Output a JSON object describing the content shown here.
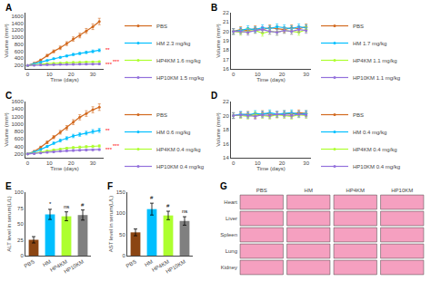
{
  "chart_data": [
    {
      "type": "line",
      "title": "A",
      "xlabel": "Time (days)",
      "ylabel": "Volume (mm³)",
      "x": [
        0,
        3,
        6,
        9,
        12,
        15,
        18,
        21,
        24,
        27,
        30,
        33
      ],
      "series": [
        {
          "name": "PBS",
          "color": "#D2691E",
          "values": [
            200,
            260,
            350,
            480,
            600,
            700,
            820,
            950,
            1050,
            1180,
            1300,
            1450
          ],
          "errors": [
            15,
            20,
            25,
            35,
            40,
            50,
            55,
            60,
            65,
            70,
            80,
            90
          ]
        },
        {
          "name": "HM 2.3 mg/kg",
          "color": "#00BFFF",
          "values": [
            200,
            240,
            290,
            340,
            390,
            430,
            470,
            510,
            540,
            570,
            600,
            630
          ],
          "errors": [
            12,
            15,
            18,
            20,
            22,
            25,
            28,
            30,
            32,
            35,
            38,
            40
          ]
        },
        {
          "name": "HP4KM 1.6 mg/kg",
          "color": "#ADFF2F",
          "values": [
            200,
            210,
            230,
            250,
            260,
            270,
            280,
            285,
            290,
            295,
            300,
            305
          ],
          "errors": [
            10,
            12,
            14,
            15,
            16,
            17,
            18,
            18,
            19,
            20,
            20,
            21
          ]
        },
        {
          "name": "HP10KM 1.5 mg/kg",
          "color": "#9370DB",
          "values": [
            200,
            205,
            215,
            220,
            225,
            228,
            230,
            232,
            234,
            236,
            238,
            240
          ],
          "errors": [
            10,
            11,
            12,
            13,
            13,
            14,
            14,
            14,
            15,
            15,
            15,
            16
          ]
        }
      ],
      "xlim": [
        -1,
        35
      ],
      "xticks": [
        0,
        10,
        20,
        30
      ],
      "ylim": [
        100,
        1700
      ],
      "yticks": [
        200,
        400,
        600,
        800,
        1000,
        1200,
        1400,
        1600
      ],
      "grid": false,
      "legend": "right",
      "marker": "circle",
      "annotations": [
        {
          "text": "**",
          "x": 33,
          "y": 630,
          "color": "red"
        },
        {
          "text": "***",
          "x": 33,
          "y": 305,
          "color": "red"
        },
        {
          "text": "***",
          "x": 33,
          "y": 240,
          "color": "red"
        }
      ]
    },
    {
      "type": "line",
      "title": "B",
      "xlabel": "Time (days)",
      "ylabel": "Volume (mm³)",
      "x": [
        0,
        3,
        6,
        9,
        12,
        15,
        18,
        21,
        24,
        27,
        30
      ],
      "series": [
        {
          "name": "PBS",
          "color": "#D2691E",
          "values": [
            20,
            20.2,
            20.1,
            20.3,
            20.2,
            20.4,
            20.3,
            20.2,
            20.4,
            20.3,
            20.5
          ],
          "errors": [
            0.3,
            0.3,
            0.3,
            0.3,
            0.3,
            0.3,
            0.3,
            0.3,
            0.3,
            0.3,
            0.3
          ]
        },
        {
          "name": "HM 1.7 mg/kg",
          "color": "#00BFFF",
          "values": [
            20,
            20.1,
            20.3,
            20.2,
            20.4,
            20.3,
            20.5,
            20.4,
            20.3,
            20.5,
            20.4
          ],
          "errors": [
            0.3,
            0.3,
            0.3,
            0.3,
            0.3,
            0.3,
            0.3,
            0.3,
            0.3,
            0.3,
            0.3
          ]
        },
        {
          "name": "HP4KM 1.1 mg/kg",
          "color": "#ADFF2F",
          "values": [
            20,
            19.9,
            20.0,
            20.1,
            19.8,
            20.0,
            19.9,
            20.1,
            20.0,
            19.9,
            20.2
          ],
          "errors": [
            0.3,
            0.3,
            0.3,
            0.3,
            0.3,
            0.3,
            0.3,
            0.3,
            0.3,
            0.3,
            0.3
          ]
        },
        {
          "name": "HP10KM 1.1 mg/kg",
          "color": "#9370DB",
          "values": [
            20,
            20.0,
            19.9,
            20.1,
            20.2,
            20.0,
            19.9,
            20.1,
            20.0,
            20.2,
            20.1
          ],
          "errors": [
            0.3,
            0.3,
            0.3,
            0.3,
            0.3,
            0.3,
            0.3,
            0.3,
            0.3,
            0.3,
            0.3
          ]
        }
      ],
      "xlim": [
        -1,
        32
      ],
      "xticks": [
        0,
        10,
        20,
        30
      ],
      "ylim": [
        16,
        22
      ],
      "yticks": [
        16,
        17,
        18,
        19,
        20,
        21,
        22
      ],
      "grid": false,
      "legend": "right",
      "marker": "circle"
    },
    {
      "type": "line",
      "title": "C",
      "xlabel": "Time (days)",
      "ylabel": "Volume (mm³)",
      "x": [
        0,
        3,
        6,
        9,
        12,
        15,
        18,
        21,
        24,
        27,
        30,
        33
      ],
      "series": [
        {
          "name": "PBS",
          "color": "#D2691E",
          "values": [
            200,
            270,
            380,
            510,
            650,
            780,
            900,
            1050,
            1180,
            1280,
            1380,
            1450
          ],
          "errors": [
            15,
            20,
            28,
            35,
            42,
            50,
            58,
            65,
            70,
            75,
            80,
            88
          ]
        },
        {
          "name": "HM 0.6 mg/kg",
          "color": "#00BFFF",
          "values": [
            200,
            250,
            320,
            400,
            490,
            560,
            620,
            680,
            720,
            760,
            800,
            830
          ],
          "errors": [
            12,
            18,
            22,
            28,
            32,
            38,
            42,
            45,
            48,
            50,
            52,
            55
          ]
        },
        {
          "name": "HP4KM 0.4 mg/kg",
          "color": "#ADFF2F",
          "values": [
            200,
            220,
            250,
            280,
            310,
            330,
            355,
            370,
            385,
            395,
            405,
            415
          ],
          "errors": [
            10,
            12,
            15,
            18,
            20,
            22,
            24,
            25,
            26,
            27,
            28,
            29
          ]
        },
        {
          "name": "HP10KM 0.4 mg/kg",
          "color": "#9370DB",
          "values": [
            200,
            210,
            225,
            245,
            260,
            275,
            285,
            295,
            302,
            308,
            314,
            320
          ],
          "errors": [
            10,
            11,
            13,
            15,
            16,
            17,
            18,
            19,
            20,
            20,
            21,
            21
          ]
        }
      ],
      "xlim": [
        -1,
        35
      ],
      "xticks": [
        0,
        10,
        20,
        30
      ],
      "ylim": [
        100,
        1600
      ],
      "yticks": [
        200,
        400,
        600,
        800,
        1000,
        1200,
        1400,
        1600
      ],
      "grid": false,
      "legend": "right",
      "marker": "circle",
      "annotations": [
        {
          "text": "**",
          "x": 33,
          "y": 830,
          "color": "red"
        },
        {
          "text": "***",
          "x": 33,
          "y": 415,
          "color": "red"
        },
        {
          "text": "***",
          "x": 33,
          "y": 320,
          "color": "red"
        }
      ]
    },
    {
      "type": "line",
      "title": "D",
      "xlabel": "Time (days)",
      "ylabel": "Volume (mm³)",
      "x": [
        0,
        3,
        6,
        9,
        12,
        15,
        18,
        21,
        24,
        27,
        30
      ],
      "series": [
        {
          "name": "PBS",
          "color": "#D2691E",
          "values": [
            20,
            20.1,
            20.2,
            20.0,
            20.3,
            20.2,
            20.1,
            20.3,
            20.2,
            20.4,
            20.3
          ],
          "errors": [
            0.4,
            0.4,
            0.4,
            0.4,
            0.4,
            0.4,
            0.4,
            0.4,
            0.4,
            0.4,
            0.4
          ]
        },
        {
          "name": "HM 0.4 mg/kg",
          "color": "#00BFFF",
          "values": [
            20,
            20.2,
            20.1,
            20.3,
            20.2,
            20.4,
            20.2,
            20.3,
            20.4,
            20.2,
            20.3
          ],
          "errors": [
            0.4,
            0.4,
            0.4,
            0.4,
            0.4,
            0.4,
            0.4,
            0.4,
            0.4,
            0.4,
            0.4
          ]
        },
        {
          "name": "HP4KM 0.4 mg/kg",
          "color": "#ADFF2F",
          "values": [
            20,
            20.0,
            19.9,
            20.1,
            20.0,
            19.9,
            20.1,
            20.0,
            19.9,
            20.1,
            20.0
          ],
          "errors": [
            0.4,
            0.4,
            0.4,
            0.4,
            0.4,
            0.4,
            0.4,
            0.4,
            0.4,
            0.4,
            0.4
          ]
        },
        {
          "name": "HP10KM 0.4 mg/kg",
          "color": "#9370DB",
          "values": [
            20,
            20.1,
            20.0,
            19.9,
            20.1,
            20.0,
            20.2,
            20.1,
            20.0,
            20.2,
            20.1
          ],
          "errors": [
            0.4,
            0.4,
            0.4,
            0.4,
            0.4,
            0.4,
            0.4,
            0.4,
            0.4,
            0.4,
            0.4
          ]
        }
      ],
      "xlim": [
        -1,
        32
      ],
      "xticks": [
        0,
        10,
        20,
        30
      ],
      "ylim": [
        14,
        22
      ],
      "yticks": [
        14,
        16,
        18,
        20,
        22
      ],
      "grid": false,
      "legend": "right",
      "marker": "circle"
    },
    {
      "type": "bar",
      "title": "E",
      "ylabel": "ALT level in serum(L/L)",
      "categories": [
        "PBS",
        "HM",
        "HP4KM",
        "HP10KM"
      ],
      "values": [
        25,
        65,
        62,
        64
      ],
      "errors": [
        5,
        8,
        7,
        8
      ],
      "colors": [
        "#8B4513",
        "#00BFFF",
        "#ADFF2F",
        "#808080"
      ],
      "ylim": [
        0,
        100
      ],
      "yticks": [
        0,
        25,
        50,
        75,
        100
      ],
      "grid": false,
      "annotations": [
        {
          "text": "*",
          "x": "HM",
          "y": 73
        },
        {
          "text": "ns",
          "x": "HP4KM",
          "y": 69
        },
        {
          "text": "#",
          "x": "HP10KM",
          "y": 72
        }
      ]
    },
    {
      "type": "bar",
      "title": "F",
      "ylabel": "AST level in serum(L/L)",
      "categories": [
        "PBS",
        "HM",
        "HP4KM",
        "HP10KM"
      ],
      "values": [
        55,
        110,
        95,
        82
      ],
      "errors": [
        8,
        14,
        10,
        10
      ],
      "colors": [
        "#8B4513",
        "#00BFFF",
        "#ADFF2F",
        "#808080"
      ],
      "ylim": [
        0,
        150
      ],
      "yticks": [
        0,
        50,
        100,
        150
      ],
      "grid": false,
      "annotations": [
        {
          "text": "#",
          "x": "HM",
          "y": 124
        },
        {
          "text": "#",
          "x": "HP4KM",
          "y": 105
        },
        {
          "text": "ns",
          "x": "HP10KM",
          "y": 92
        }
      ]
    },
    {
      "type": "image_grid",
      "title": "G",
      "x": [
        "PBS",
        "HM",
        "HP4KM",
        "HP10KM"
      ],
      "y": [
        "Heart",
        "Liver",
        "Spleen",
        "Lung",
        "Kidney"
      ],
      "color": "#F5A0C0"
    }
  ]
}
